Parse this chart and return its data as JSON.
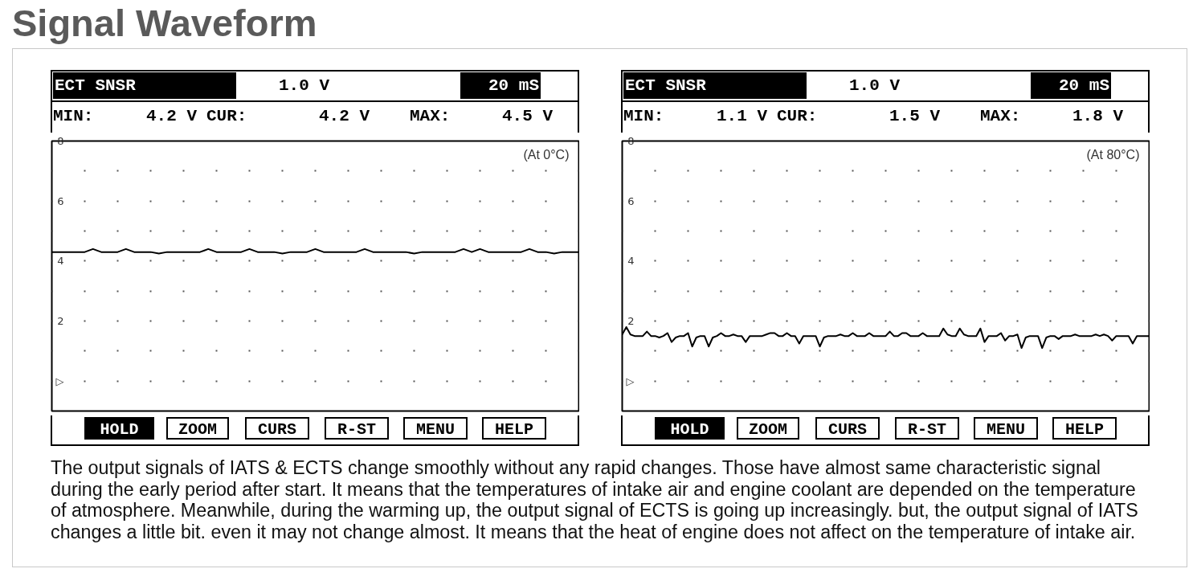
{
  "chart_data": [
    {
      "type": "other",
      "title": "Signal Waveform",
      "annotations": [
        "The output signals of IATS & ECTS change smoothly without any rapid changes. Those have almost same characteristic signal during the early period after start. It means that the temperatures of intake air and engine coolant are depended on the temperature of atmosphere. Meanwhile, during the warming up, the output signal of ECTS is going up increasingly. but, the output signal of IATS changes a little bit. even it may not change almost. It means that the heat of engine does not affect on the temperature of intake air."
      ]
    },
    {
      "type": "line",
      "title": "ECT SNSR",
      "annotations": [
        "1.0 V",
        "20 mS",
        "MIN:",
        "4.2 V",
        "CUR:",
        "4.2 V",
        "MAX:",
        "4.5 V",
        "(At 0°C)",
        "HOLD",
        "ZOOM",
        "CURS",
        "R-ST",
        "MENU",
        "HELP"
      ],
      "categories": [
        null,
        null,
        null,
        null,
        null,
        null,
        null,
        null,
        null,
        null,
        null,
        null,
        null,
        null,
        null,
        null,
        null,
        null,
        null,
        null,
        null,
        null,
        null,
        null,
        null,
        null,
        null,
        null,
        null,
        null,
        null,
        null,
        null,
        null,
        null,
        null,
        null,
        null,
        null,
        null,
        null,
        null,
        null,
        null,
        null,
        null,
        null,
        null,
        null,
        null,
        null,
        null,
        null,
        null,
        null,
        null,
        null,
        null,
        null,
        null,
        null,
        null,
        null,
        null,
        null
      ],
      "series": [
        {
          "color": "#000000",
          "values": [
            4.3,
            4.3,
            4.3,
            4.3,
            4.3,
            4.4,
            4.3,
            4.3,
            4.3,
            4.4,
            4.3,
            4.3,
            4.3,
            4.25,
            4.3,
            4.3,
            4.3,
            4.3,
            4.3,
            4.4,
            4.3,
            4.3,
            4.3,
            4.3,
            4.4,
            4.3,
            4.3,
            4.3,
            4.25,
            4.3,
            4.3,
            4.3,
            4.4,
            4.3,
            4.3,
            4.3,
            4.3,
            4.3,
            4.4,
            4.3,
            4.3,
            4.3,
            4.3,
            4.3,
            4.25,
            4.3,
            4.3,
            4.3,
            4.3,
            4.3,
            4.4,
            4.3,
            4.4,
            4.3,
            4.3,
            4.3,
            4.3,
            4.3,
            4.4,
            4.3,
            4.3,
            4.25,
            4.3,
            4.3,
            4.3
          ]
        }
      ],
      "ylim": [
        -1,
        8
      ],
      "yticks": [
        {
          "value": 0,
          "label": "▷"
        },
        {
          "value": 1,
          "label": null
        },
        2,
        {
          "value": 3,
          "label": null
        },
        4,
        {
          "value": 5,
          "label": null
        },
        6,
        {
          "value": 7,
          "label": null
        },
        8
      ],
      "grid": "y",
      "tick_labels": "y"
    },
    {
      "type": "line",
      "title": "ECT SNSR",
      "annotations": [
        "1.0 V",
        "20 mS",
        "MIN:",
        "1.1 V",
        "CUR:",
        "1.5 V",
        "MAX:",
        "1.8 V",
        "(At 80°C)",
        "HOLD",
        "ZOOM",
        "CURS",
        "R-ST",
        "MENU",
        "HELP"
      ],
      "categories": [
        null,
        null,
        null,
        null,
        null,
        null,
        null,
        null,
        null,
        null,
        null,
        null,
        null,
        null,
        null,
        null,
        null,
        null,
        null,
        null,
        null,
        null,
        null,
        null,
        null,
        null,
        null,
        null,
        null,
        null,
        null,
        null,
        null,
        null,
        null,
        null,
        null,
        null,
        null,
        null,
        null,
        null,
        null,
        null,
        null,
        null,
        null,
        null,
        null,
        null,
        null,
        null,
        null,
        null,
        null,
        null,
        null,
        null,
        null,
        null,
        null,
        null,
        null,
        null,
        null,
        null,
        null,
        null,
        null,
        null,
        null,
        null,
        null,
        null,
        null,
        null,
        null,
        null,
        null,
        null,
        null,
        null,
        null,
        null,
        null,
        null,
        null,
        null,
        null,
        null,
        null,
        null,
        null,
        null,
        null,
        null,
        null,
        null,
        null,
        null,
        null,
        null,
        null,
        null,
        null,
        null,
        null,
        null,
        null,
        null,
        null,
        null,
        null,
        null,
        null,
        null,
        null,
        null,
        null,
        null,
        null,
        null,
        null,
        null,
        null,
        null,
        null,
        null,
        null
      ],
      "series": [
        {
          "color": "#000000",
          "values": [
            1.55,
            1.8,
            1.55,
            1.5,
            1.5,
            1.5,
            1.65,
            1.5,
            1.5,
            1.45,
            1.5,
            1.6,
            1.3,
            1.45,
            1.5,
            1.5,
            1.6,
            1.15,
            1.45,
            1.5,
            1.5,
            1.15,
            1.45,
            1.5,
            1.6,
            1.5,
            1.5,
            1.55,
            1.5,
            1.5,
            1.3,
            1.5,
            1.5,
            1.5,
            1.5,
            1.55,
            1.6,
            1.6,
            1.5,
            1.5,
            1.6,
            1.5,
            1.5,
            1.25,
            1.5,
            1.5,
            1.5,
            1.5,
            1.15,
            1.45,
            1.5,
            1.5,
            1.5,
            1.55,
            1.5,
            1.5,
            1.6,
            1.5,
            1.5,
            1.5,
            1.6,
            1.5,
            1.5,
            1.5,
            1.5,
            1.65,
            1.5,
            1.5,
            1.6,
            1.6,
            1.5,
            1.5,
            1.5,
            1.6,
            1.5,
            1.5,
            1.5,
            1.5,
            1.75,
            1.55,
            1.5,
            1.5,
            1.75,
            1.55,
            1.5,
            1.5,
            1.5,
            1.75,
            1.3,
            1.5,
            1.5,
            1.5,
            1.6,
            1.35,
            1.5,
            1.5,
            1.55,
            1.1,
            1.45,
            1.5,
            1.5,
            1.5,
            1.1,
            1.45,
            1.5,
            1.5,
            1.4,
            1.5,
            1.5,
            1.5,
            1.55,
            1.5,
            1.5,
            1.5,
            1.5,
            1.55,
            1.5,
            1.55,
            1.5,
            1.35,
            1.5,
            1.5,
            1.5,
            1.5,
            1.25,
            1.5,
            1.5,
            1.5,
            1.5
          ]
        }
      ],
      "ylim": [
        -1,
        8
      ],
      "yticks": [
        {
          "value": 0,
          "label": "▷"
        },
        {
          "value": 1,
          "label": null
        },
        2,
        {
          "value": 3,
          "label": null
        },
        4,
        {
          "value": 5,
          "label": null
        },
        6,
        {
          "value": 7,
          "label": null
        },
        8
      ],
      "grid": "y",
      "tick_labels": "y"
    }
  ]
}
